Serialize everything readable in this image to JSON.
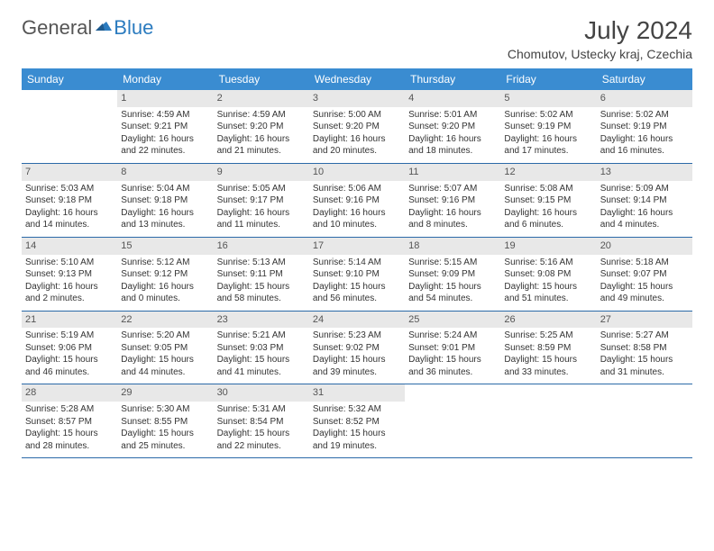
{
  "logo": {
    "text1": "General",
    "text2": "Blue"
  },
  "title": "July 2024",
  "location": "Chomutov, Ustecky kraj, Czechia",
  "colors": {
    "header_bg": "#3a8cd1",
    "header_text": "#ffffff",
    "daynum_bg": "#e8e8e8",
    "row_border": "#2b6aa8",
    "logo_gray": "#555555",
    "logo_blue": "#2b7bbf"
  },
  "dayNames": [
    "Sunday",
    "Monday",
    "Tuesday",
    "Wednesday",
    "Thursday",
    "Friday",
    "Saturday"
  ],
  "weeks": [
    [
      {
        "n": "",
        "lines": []
      },
      {
        "n": "1",
        "lines": [
          "Sunrise: 4:59 AM",
          "Sunset: 9:21 PM",
          "Daylight: 16 hours",
          "and 22 minutes."
        ]
      },
      {
        "n": "2",
        "lines": [
          "Sunrise: 4:59 AM",
          "Sunset: 9:20 PM",
          "Daylight: 16 hours",
          "and 21 minutes."
        ]
      },
      {
        "n": "3",
        "lines": [
          "Sunrise: 5:00 AM",
          "Sunset: 9:20 PM",
          "Daylight: 16 hours",
          "and 20 minutes."
        ]
      },
      {
        "n": "4",
        "lines": [
          "Sunrise: 5:01 AM",
          "Sunset: 9:20 PM",
          "Daylight: 16 hours",
          "and 18 minutes."
        ]
      },
      {
        "n": "5",
        "lines": [
          "Sunrise: 5:02 AM",
          "Sunset: 9:19 PM",
          "Daylight: 16 hours",
          "and 17 minutes."
        ]
      },
      {
        "n": "6",
        "lines": [
          "Sunrise: 5:02 AM",
          "Sunset: 9:19 PM",
          "Daylight: 16 hours",
          "and 16 minutes."
        ]
      }
    ],
    [
      {
        "n": "7",
        "lines": [
          "Sunrise: 5:03 AM",
          "Sunset: 9:18 PM",
          "Daylight: 16 hours",
          "and 14 minutes."
        ]
      },
      {
        "n": "8",
        "lines": [
          "Sunrise: 5:04 AM",
          "Sunset: 9:18 PM",
          "Daylight: 16 hours",
          "and 13 minutes."
        ]
      },
      {
        "n": "9",
        "lines": [
          "Sunrise: 5:05 AM",
          "Sunset: 9:17 PM",
          "Daylight: 16 hours",
          "and 11 minutes."
        ]
      },
      {
        "n": "10",
        "lines": [
          "Sunrise: 5:06 AM",
          "Sunset: 9:16 PM",
          "Daylight: 16 hours",
          "and 10 minutes."
        ]
      },
      {
        "n": "11",
        "lines": [
          "Sunrise: 5:07 AM",
          "Sunset: 9:16 PM",
          "Daylight: 16 hours",
          "and 8 minutes."
        ]
      },
      {
        "n": "12",
        "lines": [
          "Sunrise: 5:08 AM",
          "Sunset: 9:15 PM",
          "Daylight: 16 hours",
          "and 6 minutes."
        ]
      },
      {
        "n": "13",
        "lines": [
          "Sunrise: 5:09 AM",
          "Sunset: 9:14 PM",
          "Daylight: 16 hours",
          "and 4 minutes."
        ]
      }
    ],
    [
      {
        "n": "14",
        "lines": [
          "Sunrise: 5:10 AM",
          "Sunset: 9:13 PM",
          "Daylight: 16 hours",
          "and 2 minutes."
        ]
      },
      {
        "n": "15",
        "lines": [
          "Sunrise: 5:12 AM",
          "Sunset: 9:12 PM",
          "Daylight: 16 hours",
          "and 0 minutes."
        ]
      },
      {
        "n": "16",
        "lines": [
          "Sunrise: 5:13 AM",
          "Sunset: 9:11 PM",
          "Daylight: 15 hours",
          "and 58 minutes."
        ]
      },
      {
        "n": "17",
        "lines": [
          "Sunrise: 5:14 AM",
          "Sunset: 9:10 PM",
          "Daylight: 15 hours",
          "and 56 minutes."
        ]
      },
      {
        "n": "18",
        "lines": [
          "Sunrise: 5:15 AM",
          "Sunset: 9:09 PM",
          "Daylight: 15 hours",
          "and 54 minutes."
        ]
      },
      {
        "n": "19",
        "lines": [
          "Sunrise: 5:16 AM",
          "Sunset: 9:08 PM",
          "Daylight: 15 hours",
          "and 51 minutes."
        ]
      },
      {
        "n": "20",
        "lines": [
          "Sunrise: 5:18 AM",
          "Sunset: 9:07 PM",
          "Daylight: 15 hours",
          "and 49 minutes."
        ]
      }
    ],
    [
      {
        "n": "21",
        "lines": [
          "Sunrise: 5:19 AM",
          "Sunset: 9:06 PM",
          "Daylight: 15 hours",
          "and 46 minutes."
        ]
      },
      {
        "n": "22",
        "lines": [
          "Sunrise: 5:20 AM",
          "Sunset: 9:05 PM",
          "Daylight: 15 hours",
          "and 44 minutes."
        ]
      },
      {
        "n": "23",
        "lines": [
          "Sunrise: 5:21 AM",
          "Sunset: 9:03 PM",
          "Daylight: 15 hours",
          "and 41 minutes."
        ]
      },
      {
        "n": "24",
        "lines": [
          "Sunrise: 5:23 AM",
          "Sunset: 9:02 PM",
          "Daylight: 15 hours",
          "and 39 minutes."
        ]
      },
      {
        "n": "25",
        "lines": [
          "Sunrise: 5:24 AM",
          "Sunset: 9:01 PM",
          "Daylight: 15 hours",
          "and 36 minutes."
        ]
      },
      {
        "n": "26",
        "lines": [
          "Sunrise: 5:25 AM",
          "Sunset: 8:59 PM",
          "Daylight: 15 hours",
          "and 33 minutes."
        ]
      },
      {
        "n": "27",
        "lines": [
          "Sunrise: 5:27 AM",
          "Sunset: 8:58 PM",
          "Daylight: 15 hours",
          "and 31 minutes."
        ]
      }
    ],
    [
      {
        "n": "28",
        "lines": [
          "Sunrise: 5:28 AM",
          "Sunset: 8:57 PM",
          "Daylight: 15 hours",
          "and 28 minutes."
        ]
      },
      {
        "n": "29",
        "lines": [
          "Sunrise: 5:30 AM",
          "Sunset: 8:55 PM",
          "Daylight: 15 hours",
          "and 25 minutes."
        ]
      },
      {
        "n": "30",
        "lines": [
          "Sunrise: 5:31 AM",
          "Sunset: 8:54 PM",
          "Daylight: 15 hours",
          "and 22 minutes."
        ]
      },
      {
        "n": "31",
        "lines": [
          "Sunrise: 5:32 AM",
          "Sunset: 8:52 PM",
          "Daylight: 15 hours",
          "and 19 minutes."
        ]
      },
      {
        "n": "",
        "lines": []
      },
      {
        "n": "",
        "lines": []
      },
      {
        "n": "",
        "lines": []
      }
    ]
  ]
}
